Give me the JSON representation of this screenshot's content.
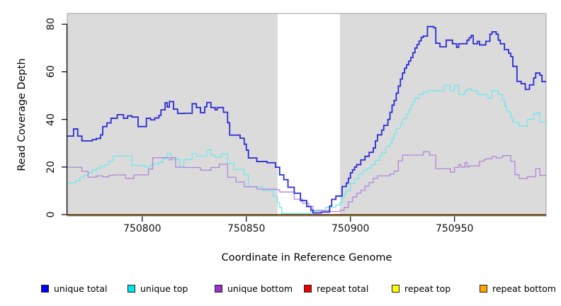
{
  "figure": {
    "x_axis": {
      "label": "Coordinate in Reference Genome",
      "ticks": [
        750800,
        750850,
        750900,
        750950
      ]
    },
    "y_axis": {
      "label": "Read Coverage Depth",
      "ticks": [
        0,
        20,
        40,
        60,
        80
      ]
    },
    "colors": {
      "panel_background": "#DBDBDB",
      "panel_border": "#9C9C9C",
      "highlight_band": "#FFFFFF",
      "axis": "#000000"
    },
    "legend": [
      {
        "label": "unique total",
        "swatch": "#0000F0"
      },
      {
        "label": "unique top",
        "swatch": "#00E5EE"
      },
      {
        "label": "unique bottom",
        "swatch": "#9932CC"
      },
      {
        "label": "repeat total",
        "swatch": "#EE0000"
      },
      {
        "label": "repeat top",
        "swatch": "#FFFF00"
      },
      {
        "label": "repeat bottom",
        "swatch": "#FFA500"
      }
    ]
  },
  "chart_data": {
    "type": "line",
    "step": true,
    "title": "",
    "xlabel": "Coordinate in Reference Genome",
    "ylabel": "Read Coverage Depth",
    "xlim": [
      750764,
      750994
    ],
    "ylim": [
      0,
      84.5
    ],
    "grid": false,
    "legend_position": "bottom",
    "highlight_band": {
      "x0": 750865,
      "x1": 750895
    },
    "series": [
      {
        "name": "repeat total",
        "color": "#DD0000",
        "width": 1.3,
        "points": [
          [
            750764,
            0
          ]
        ]
      },
      {
        "name": "repeat top",
        "color": "#FFEE00",
        "width": 1.3,
        "points": [
          [
            750764,
            0
          ]
        ]
      },
      {
        "name": "repeat bottom",
        "color": "#FF9D00",
        "width": 1.7,
        "points": [
          [
            750764,
            0
          ]
        ]
      },
      {
        "name": "unique top",
        "color": "#6FE8EA",
        "width": 1.3,
        "points": [
          [
            750764,
            13.4
          ],
          [
            750768,
            14.2
          ],
          [
            750770,
            15.7
          ],
          [
            750772,
            16.5
          ],
          [
            750774,
            17.5
          ],
          [
            750776,
            18.7
          ],
          [
            750778,
            19.5
          ],
          [
            750780,
            20.3
          ],
          [
            750782,
            21
          ],
          [
            750784,
            22.5
          ],
          [
            750786,
            24.6
          ],
          [
            750795,
            20.7
          ],
          [
            750801,
            20.1
          ],
          [
            750804,
            21
          ],
          [
            750806,
            21.4
          ],
          [
            750808,
            22
          ],
          [
            750810,
            23.6
          ],
          [
            750812,
            25.6
          ],
          [
            750814,
            23.2
          ],
          [
            750818,
            20
          ],
          [
            750820,
            23.2
          ],
          [
            750824,
            25.7
          ],
          [
            750826,
            24.6
          ],
          [
            750831,
            27.2
          ],
          [
            750833,
            25
          ],
          [
            750835,
            24.2
          ],
          [
            750838,
            25.5
          ],
          [
            750841,
            21.7
          ],
          [
            750844,
            19
          ],
          [
            750849,
            16.7
          ],
          [
            750851,
            11.7
          ],
          [
            750858,
            10.2
          ],
          [
            750863,
            7.6
          ],
          [
            750865,
            5
          ],
          [
            750866,
            3
          ],
          [
            750867,
            0.5
          ],
          [
            750881,
            1.3
          ],
          [
            750885,
            1.8
          ],
          [
            750888,
            3.1
          ],
          [
            750893,
            4
          ],
          [
            750895,
            5
          ],
          [
            750896,
            7
          ],
          [
            750897,
            8.5
          ],
          [
            750898,
            10
          ],
          [
            750900,
            13
          ],
          [
            750902,
            15
          ],
          [
            750904,
            17
          ],
          [
            750906,
            18.5
          ],
          [
            750908,
            19.5
          ],
          [
            750910,
            21
          ],
          [
            750912,
            22.8
          ],
          [
            750914,
            24.5
          ],
          [
            750915,
            26
          ],
          [
            750917,
            28.6
          ],
          [
            750919,
            30
          ],
          [
            750920,
            32
          ],
          [
            750921,
            34
          ],
          [
            750922,
            36.2
          ],
          [
            750924,
            38
          ],
          [
            750925,
            40.3
          ],
          [
            750927,
            42.3
          ],
          [
            750928,
            44
          ],
          [
            750929,
            46
          ],
          [
            750930,
            47.5
          ],
          [
            750931,
            49
          ],
          [
            750933,
            50.5
          ],
          [
            750935,
            51.5
          ],
          [
            750937,
            52.1
          ],
          [
            750941,
            52
          ],
          [
            750945,
            54.4
          ],
          [
            750948,
            52
          ],
          [
            750950,
            54.4
          ],
          [
            750952,
            50.5
          ],
          [
            750955,
            52
          ],
          [
            750956,
            52.7
          ],
          [
            750958,
            52
          ],
          [
            750961,
            50.5
          ],
          [
            750966,
            49
          ],
          [
            750968,
            52.1
          ],
          [
            750971,
            50.5
          ],
          [
            750973,
            48.2
          ],
          [
            750974,
            45.8
          ],
          [
            750975,
            43.2
          ],
          [
            750977,
            40.8
          ],
          [
            750978,
            38.7
          ],
          [
            750981,
            37.2
          ],
          [
            750985,
            40
          ],
          [
            750988,
            42.3
          ],
          [
            750990,
            43
          ],
          [
            750991,
            38.9
          ]
        ]
      },
      {
        "name": "unique bottom",
        "color": "#B186DB",
        "width": 1.3,
        "points": [
          [
            750764,
            19.9
          ],
          [
            750771,
            18.2
          ],
          [
            750774,
            15.7
          ],
          [
            750778,
            16.3
          ],
          [
            750781,
            15.9
          ],
          [
            750784,
            16.5
          ],
          [
            750786,
            16.7
          ],
          [
            750792,
            15.2
          ],
          [
            750796,
            16.7
          ],
          [
            750803,
            19.2
          ],
          [
            750805,
            23.9
          ],
          [
            750813,
            23
          ],
          [
            750814,
            23.9
          ],
          [
            750816,
            19.9
          ],
          [
            750820,
            19.8
          ],
          [
            750828,
            18.7
          ],
          [
            750833,
            19.8
          ],
          [
            750837,
            21.2
          ],
          [
            750841,
            15.7
          ],
          [
            750845,
            13.7
          ],
          [
            750849,
            11.7
          ],
          [
            750855,
            10.7
          ],
          [
            750864,
            10.5
          ],
          [
            750866,
            9.5
          ],
          [
            750873,
            6.5
          ],
          [
            750877,
            4.8
          ],
          [
            750880,
            3.5
          ],
          [
            750882,
            1.8
          ],
          [
            750890,
            1.3
          ],
          [
            750895,
            1.8
          ],
          [
            750897,
            3
          ],
          [
            750899,
            5.4
          ],
          [
            750901,
            7.4
          ],
          [
            750903,
            9
          ],
          [
            750905,
            10.2
          ],
          [
            750907,
            12
          ],
          [
            750909,
            13.5
          ],
          [
            750911,
            15.3
          ],
          [
            750913,
            16.3
          ],
          [
            750919,
            17
          ],
          [
            750921,
            18.3
          ],
          [
            750923,
            22.6
          ],
          [
            750925,
            25
          ],
          [
            750935,
            26.4
          ],
          [
            750938,
            25
          ],
          [
            750941,
            19.3
          ],
          [
            750948,
            17.8
          ],
          [
            750950,
            19.8
          ],
          [
            750952,
            21
          ],
          [
            750953,
            20
          ],
          [
            750955,
            21.9
          ],
          [
            750956,
            20
          ],
          [
            750957,
            20.5
          ],
          [
            750962,
            22.4
          ],
          [
            750964,
            23
          ],
          [
            750965,
            23.5
          ],
          [
            750968,
            24.4
          ],
          [
            750970,
            23.8
          ],
          [
            750973,
            24.8
          ],
          [
            750977,
            22.4
          ],
          [
            750979,
            16.8
          ],
          [
            750981,
            15.2
          ],
          [
            750985,
            15.9
          ],
          [
            750989,
            19.3
          ],
          [
            750991,
            16.5
          ]
        ]
      },
      {
        "name": "unique total",
        "color": "#2B2BD5",
        "width": 1.8,
        "points": [
          [
            750764,
            33
          ],
          [
            750767,
            36
          ],
          [
            750769,
            33
          ],
          [
            750771,
            31
          ],
          [
            750776,
            31.5
          ],
          [
            750778,
            32
          ],
          [
            750780,
            33.5
          ],
          [
            750781,
            37
          ],
          [
            750783,
            38.5
          ],
          [
            750785,
            40.5
          ],
          [
            750788,
            42
          ],
          [
            750791,
            40.5
          ],
          [
            750793,
            41.5
          ],
          [
            750795,
            41
          ],
          [
            750798,
            37
          ],
          [
            750802,
            40.5
          ],
          [
            750804,
            39.8
          ],
          [
            750806,
            40.6
          ],
          [
            750808,
            41.7
          ],
          [
            750809,
            44
          ],
          [
            750811,
            47
          ],
          [
            750812,
            45.2
          ],
          [
            750813,
            47.5
          ],
          [
            750815,
            44.3
          ],
          [
            750817,
            42.5
          ],
          [
            750820,
            42.6
          ],
          [
            750824,
            46.6
          ],
          [
            750826,
            45
          ],
          [
            750828,
            42.8
          ],
          [
            750830,
            45.3
          ],
          [
            750831,
            47.1
          ],
          [
            750833,
            45
          ],
          [
            750835,
            44
          ],
          [
            750836,
            45
          ],
          [
            750839,
            43
          ],
          [
            750841,
            38.6
          ],
          [
            750842,
            33.4
          ],
          [
            750847,
            32.1
          ],
          [
            750849,
            29.6
          ],
          [
            750850,
            27.1
          ],
          [
            750851,
            23.8
          ],
          [
            750855,
            22.3
          ],
          [
            750860,
            21.8
          ],
          [
            750864,
            19.9
          ],
          [
            750866,
            16.7
          ],
          [
            750868,
            14.7
          ],
          [
            750870,
            11.5
          ],
          [
            750873,
            9
          ],
          [
            750876,
            5.9
          ],
          [
            750879,
            3.4
          ],
          [
            750881,
            1.9
          ],
          [
            750882,
            0.7
          ],
          [
            750886,
            1.1
          ],
          [
            750890,
            3.6
          ],
          [
            750891,
            6.4
          ],
          [
            750893,
            7.8
          ],
          [
            750896,
            11.8
          ],
          [
            750898,
            13.3
          ],
          [
            750899,
            15.3
          ],
          [
            750900,
            17.6
          ],
          [
            750901,
            18.8
          ],
          [
            750902,
            20
          ],
          [
            750903,
            21
          ],
          [
            750905,
            23
          ],
          [
            750907,
            24.5
          ],
          [
            750909,
            26.2
          ],
          [
            750911,
            28
          ],
          [
            750912,
            31
          ],
          [
            750913,
            33.5
          ],
          [
            750915,
            35.5
          ],
          [
            750916,
            37.5
          ],
          [
            750918,
            40
          ],
          [
            750919,
            43
          ],
          [
            750920,
            46
          ],
          [
            750921,
            48
          ],
          [
            750922,
            51
          ],
          [
            750923,
            54
          ],
          [
            750924,
            57
          ],
          [
            750925,
            59.5
          ],
          [
            750926,
            61.5
          ],
          [
            750927,
            63
          ],
          [
            750928,
            64.5
          ],
          [
            750929,
            66
          ],
          [
            750930,
            68
          ],
          [
            750931,
            70
          ],
          [
            750932,
            71.5
          ],
          [
            750933,
            73
          ],
          [
            750934,
            74.5
          ],
          [
            750935,
            75
          ],
          [
            750937,
            79
          ],
          [
            750940,
            78.5
          ],
          [
            750941,
            72
          ],
          [
            750943,
            70.5
          ],
          [
            750946,
            73.3
          ],
          [
            750949,
            71.8
          ],
          [
            750951,
            70.3
          ],
          [
            750952,
            71.8
          ],
          [
            750956,
            73.3
          ],
          [
            750957,
            74.3
          ],
          [
            750958,
            75.3
          ],
          [
            750959,
            71.8
          ],
          [
            750961,
            72.8
          ],
          [
            750962,
            71.3
          ],
          [
            750965,
            72.8
          ],
          [
            750967,
            75.8
          ],
          [
            750968,
            76.8
          ],
          [
            750970,
            75.8
          ],
          [
            750971,
            73.3
          ],
          [
            750972,
            71.8
          ],
          [
            750974,
            69.3
          ],
          [
            750976,
            67.8
          ],
          [
            750977,
            66.4
          ],
          [
            750978,
            62.3
          ],
          [
            750980,
            56
          ],
          [
            750982,
            55
          ],
          [
            750984,
            52.6
          ],
          [
            750986,
            54.5
          ],
          [
            750988,
            57.4
          ],
          [
            750989,
            59.5
          ],
          [
            750991,
            58.6
          ],
          [
            750992,
            55.9
          ]
        ]
      }
    ]
  }
}
